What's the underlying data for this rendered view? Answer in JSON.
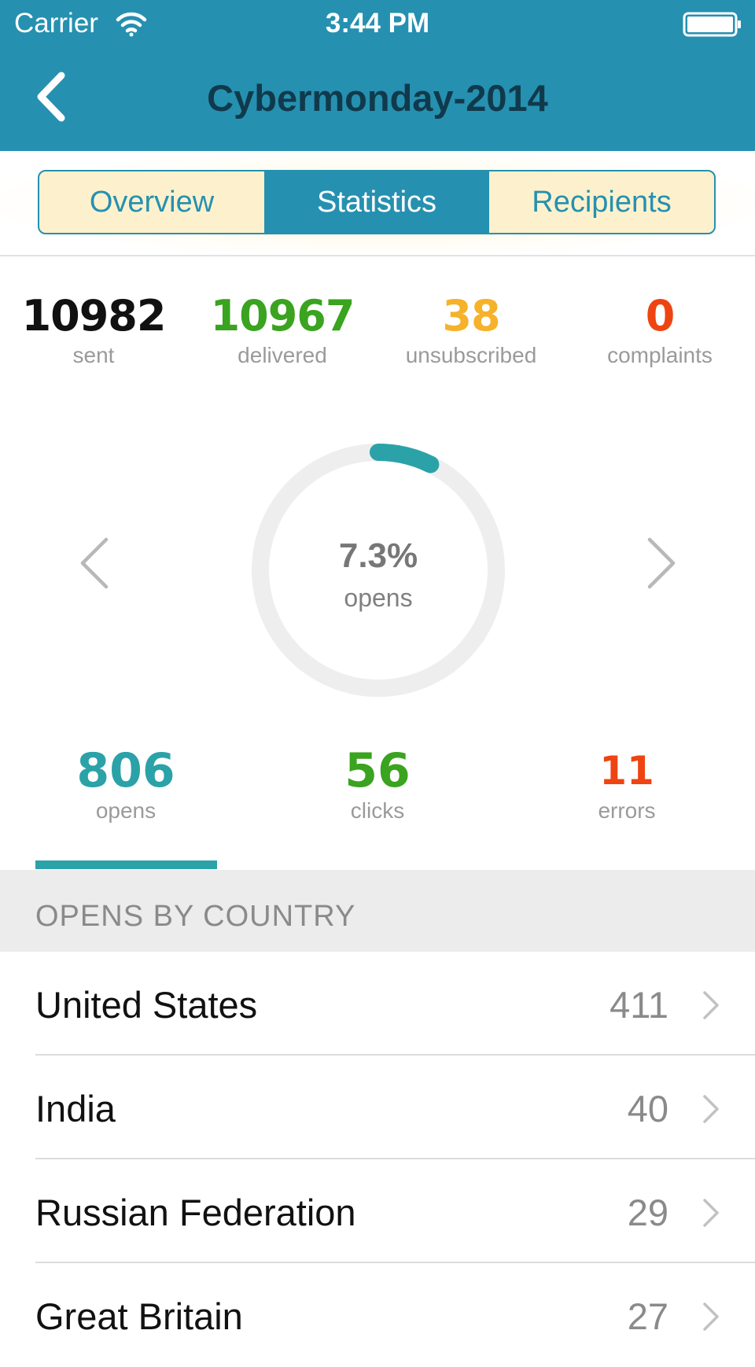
{
  "status_bar": {
    "carrier": "Carrier",
    "time": "3:44 PM",
    "icons": [
      "wifi-icon",
      "battery-icon"
    ]
  },
  "nav": {
    "title": "Cybermonday-2014",
    "back_icon": "chevron-left-icon"
  },
  "tabs": [
    {
      "label": "Overview",
      "active": false
    },
    {
      "label": "Statistics",
      "active": true
    },
    {
      "label": "Recipients",
      "active": false
    }
  ],
  "stats": {
    "sent": {
      "value": "10982",
      "label": "sent",
      "color": "#111111"
    },
    "delivered": {
      "value": "10967",
      "label": "delivered",
      "color": "#3aa31f"
    },
    "unsubscribed": {
      "value": "38",
      "label": "unsubscribed",
      "color": "#f5b22a"
    },
    "complaints": {
      "value": "0",
      "label": "complaints",
      "color": "#ee4412"
    }
  },
  "donut": {
    "percent_text": "7.3%",
    "label": "opens",
    "fraction": 0.073,
    "track_color": "#eeeeee",
    "arc_color": "#2aa2a8",
    "prev_icon": "chevron-left-icon",
    "next_icon": "chevron-right-icon"
  },
  "metrics": {
    "opens": {
      "value": "806",
      "label": "opens",
      "color": "#2aa2a8",
      "selected": true
    },
    "clicks": {
      "value": "56",
      "label": "clicks",
      "color": "#3aa31f",
      "selected": false
    },
    "errors": {
      "value": "11",
      "label": "errors",
      "color": "#ee4412",
      "selected": false
    }
  },
  "section": {
    "title": "OPENS BY COUNTRY"
  },
  "countries": [
    {
      "name": "United States",
      "count": "411"
    },
    {
      "name": "India",
      "count": "40"
    },
    {
      "name": "Russian Federation",
      "count": "29"
    },
    {
      "name": "Great Britain",
      "count": "27"
    }
  ],
  "colors": {
    "header_bg": "#2690b0",
    "title_text": "#103a4c",
    "accent": "#2690b0",
    "segment_inactive_bg": "#fdf1cd"
  }
}
